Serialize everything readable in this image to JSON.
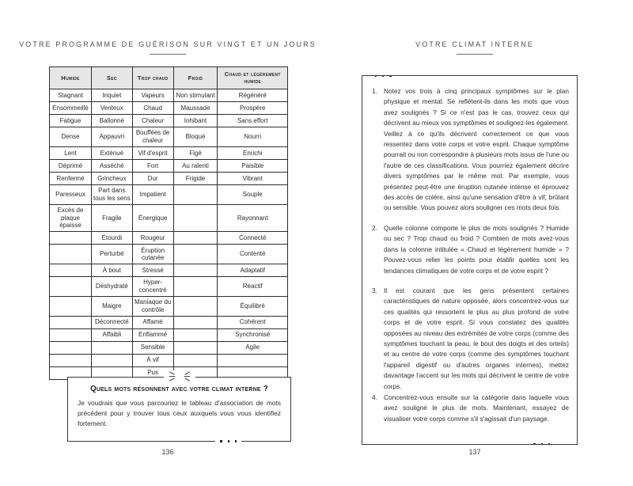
{
  "left_page": {
    "running_head": "VOTRE PROGRAMME DE GUÉRISON SUR VINGT ET UN JOURS",
    "page_number": "136",
    "table": {
      "headers": [
        "Humide",
        "Sec",
        "Trop chaud",
        "Froid",
        "Chaud et légèrement humide"
      ],
      "rows": [
        [
          "Stagnant",
          "Inquiet",
          "Vapeurs",
          "Non stimulant",
          "Régénéré"
        ],
        [
          "Ensommeillé",
          "Venteux",
          "Chaud",
          "Maussade",
          "Prospère"
        ],
        [
          "Fatigue",
          "Ballonné",
          "Chaleur",
          "Inhibant",
          "Sans effort"
        ],
        [
          "Dense",
          "Appauvri",
          "Bouffées de chaleur",
          "Bloqué",
          "Nourri"
        ],
        [
          "Lent",
          "Exténué",
          "Vif d'esprit",
          "Figé",
          "Enrichi"
        ],
        [
          "Déprimé",
          "Asséché",
          "Fort",
          "Au ralenti",
          "Paisible"
        ],
        [
          "Renfermé",
          "Grincheux",
          "Dur",
          "Frigide",
          "Vibrant"
        ],
        [
          "Paresseux",
          "Part dans tous les sens",
          "Impatient",
          "",
          "Souple"
        ],
        [
          "Excès de plaque épaisse",
          "Fragile",
          "Énergique",
          "",
          "Rayonnant"
        ],
        [
          "",
          "Étourdi",
          "Rougeur",
          "",
          "Connecté"
        ],
        [
          "",
          "Perturbé",
          "Éruption cutanée",
          "",
          "Contenté"
        ],
        [
          "",
          "À bout",
          "Stressé",
          "",
          "Adaptatif"
        ],
        [
          "",
          "Déshydraté",
          "Hyper-concentré",
          "",
          "Réactif"
        ],
        [
          "",
          "Maigre",
          "Maniaque du contrôle",
          "",
          "Équilibré"
        ],
        [
          "",
          "Déconnecté",
          "Affamé",
          "",
          "Cohérent"
        ],
        [
          "",
          "Affaibli",
          "Enflammé",
          "",
          "Synchronisé"
        ],
        [
          "",
          "",
          "Sensible",
          "",
          "Agile"
        ],
        [
          "",
          "",
          "À vif",
          "",
          ""
        ],
        [
          "",
          "",
          "Pus",
          "",
          ""
        ]
      ]
    },
    "callout": {
      "title": "Quels mots résonnent avec votre climat interne ?",
      "body": "Je voudrais que vous parcouriez le tableau d'association de mots précédent pour y trouver tous ceux auxquels vous vous identifiez fortement."
    }
  },
  "right_page": {
    "running_head": "VOTRE CLIMAT INTERNE",
    "page_number": "137",
    "exercise_items": [
      {
        "number": "1.",
        "text": "Notez vos trois à cinq principaux symptômes sur le plan physique et mental. Se reflètent-ils dans les mots que vous avez soulignés ? Si ce n'est pas le cas, trouvez ceux qui décrivent au mieux vos symptômes et soulignez-les également. Veillez à ce qu'ils décrivent correctement ce que vous ressentez dans votre corps et votre esprit. Chaque symptôme pourrait ou non correspondre à plusieurs mots issus de l'une ou l'autre de ces classifications. Vous pourriez également décrire divers symptômes par le même mot. Par exemple, vous présentez peut-être une éruption cutanée intense et éprouvez des accès de colère, ainsi qu'une sensation d'être à vif, brûlant ou sensible. Vous pouvez alors souligner ces mots deux fois."
      },
      {
        "number": "2.",
        "text": "Quelle colonne comporte le plus de mots soulignés ? Humide ou sec ? Trop chaud ou froid ? Combien de mots avez-vous dans la colonne intitulée « Chaud et légèrement humide » ? Pouvez-vous relier les points pour établir quelles sont les tendances climatiques de votre corps et de votre esprit ?"
      },
      {
        "number": "3.",
        "text": "Il est courant que les gens présentent certaines caractéristiques de nature opposée, alors concentrez-vous sur ces qualités qui ressortent le plus au plus profond de votre corps et de votre esprit. Si vous constatez des qualités opposées au niveau des extrémités de votre corps (comme des symptômes touchant la peau, le bout des doigts et des orteils) et au centre de votre corps (comme des symptômes touchant l'appareil digestif ou d'autres organes internes), mettez davantage l'accent sur les mots qui décrivent le centre de votre corps."
      },
      {
        "number": "4.",
        "text": "Concentrez-vous ensuite sur la catégorie dans laquelle vous avez souligné le plus de mots. Maintenant, essayez de visualiser votre corps comme s'il s'agissait d'un paysage."
      }
    ]
  },
  "decor": {
    "sparkle_icon": "burst-lines-ornament",
    "continuation_marker": "···"
  },
  "colors": {
    "table_header_bg": "#e6e6e6",
    "border": "#2f2f2f",
    "text": "#2e2e2e",
    "running_head": "#4c4c4c"
  }
}
